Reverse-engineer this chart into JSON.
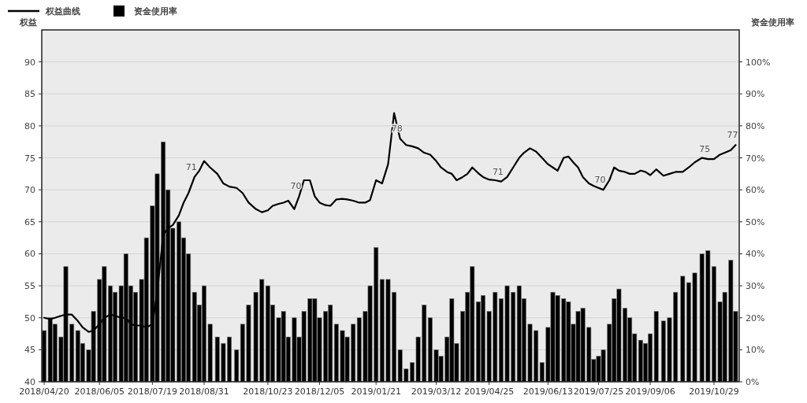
{
  "chart_data": {
    "type": "bar",
    "ylabel": "权益",
    "y2label": "资金使用率",
    "legend": "top left",
    "grid": "y",
    "x": [
      "2018-04-20",
      "2018-04-25",
      "2018-04-29",
      "2018-05-04",
      "2018-05-08",
      "2018-05-13",
      "2018-05-18",
      "2018-05-22",
      "2018-05-27",
      "2018-05-31",
      "2018-06-05",
      "2018-06-09",
      "2018-06-14",
      "2018-06-18",
      "2018-06-23",
      "2018-06-27",
      "2018-07-01",
      "2018-07-05",
      "2018-07-10",
      "2018-07-14",
      "2018-07-19",
      "2018-07-23",
      "2018-07-28",
      "2018-08-01",
      "2018-08-05",
      "2018-08-10",
      "2018-08-14",
      "2018-08-18",
      "2018-08-23",
      "2018-08-27",
      "2018-08-31",
      "2018-09-05",
      "2018-09-11",
      "2018-09-16",
      "2018-09-21",
      "2018-09-27",
      "2018-10-02",
      "2018-10-07",
      "2018-10-13",
      "2018-10-18",
      "2018-10-23",
      "2018-10-27",
      "2018-11-01",
      "2018-11-05",
      "2018-11-09",
      "2018-11-14",
      "2018-11-18",
      "2018-11-22",
      "2018-11-27",
      "2018-12-01",
      "2018-12-05",
      "2018-12-10",
      "2018-12-14",
      "2018-12-19",
      "2018-12-24",
      "2018-12-28",
      "2019-01-02",
      "2019-01-07",
      "2019-01-12",
      "2019-01-16",
      "2019-01-21",
      "2019-01-26",
      "2019-01-31",
      "2019-02-05",
      "2019-02-10",
      "2019-02-15",
      "2019-02-20",
      "2019-02-25",
      "2019-03-02",
      "2019-03-07",
      "2019-03-12",
      "2019-03-16",
      "2019-03-21",
      "2019-03-25",
      "2019-03-29",
      "2019-04-03",
      "2019-04-07",
      "2019-04-11",
      "2019-04-16",
      "2019-04-20",
      "2019-04-25",
      "2019-04-30",
      "2019-05-05",
      "2019-05-10",
      "2019-05-15",
      "2019-05-20",
      "2019-05-24",
      "2019-05-29",
      "2019-06-03",
      "2019-06-08",
      "2019-06-13",
      "2019-06-17",
      "2019-06-21",
      "2019-06-26",
      "2019-06-30",
      "2019-07-04",
      "2019-07-08",
      "2019-07-12",
      "2019-07-17",
      "2019-07-21",
      "2019-07-25",
      "2019-07-29",
      "2019-08-03",
      "2019-08-07",
      "2019-08-11",
      "2019-08-16",
      "2019-08-20",
      "2019-08-24",
      "2019-08-29",
      "2019-09-02",
      "2019-09-06",
      "2019-09-11",
      "2019-09-17",
      "2019-09-22",
      "2019-09-27",
      "2019-10-03",
      "2019-10-08",
      "2019-10-13",
      "2019-10-19",
      "2019-10-24",
      "2019-10-29",
      "2019-11-03",
      "2019-11-07",
      "2019-11-12",
      "2019-11-16"
    ],
    "xlim": [
      "2018-04-18",
      "2019-11-19"
    ],
    "xticks": [
      {
        "value": "2018-04-20",
        "label": "2018/04/20"
      },
      {
        "value": "2018-06-05",
        "label": "2018/06/05"
      },
      {
        "value": "2018-07-19",
        "label": "2018/07/19"
      },
      {
        "value": "2018-08-31",
        "label": "2018/08/31"
      },
      {
        "value": "2018-10-23",
        "label": "2018/10/23"
      },
      {
        "value": "2018-12-05",
        "label": "2018/12/05"
      },
      {
        "value": "2019-01-21",
        "label": "2019/01/21"
      },
      {
        "value": "2019-03-12",
        "label": "2019/03/12"
      },
      {
        "value": "2019-04-25",
        "label": "2019/04/25"
      },
      {
        "value": "2019-06-13",
        "label": "2019/06/13"
      },
      {
        "value": "2019-07-25",
        "label": "2019/07/25"
      },
      {
        "value": "2019-09-06",
        "label": "2019/09/06"
      },
      {
        "value": "2019-10-29",
        "label": "2019/10/29"
      }
    ],
    "ylim": [
      40,
      95
    ],
    "yticks": [
      40,
      45,
      50,
      55,
      60,
      65,
      70,
      75,
      80,
      85,
      90
    ],
    "y2lim": [
      0,
      110
    ],
    "y2ticks": [
      {
        "value": 0,
        "label": "0%"
      },
      {
        "value": 10,
        "label": "10%"
      },
      {
        "value": 20,
        "label": "20%"
      },
      {
        "value": 30,
        "label": "30%"
      },
      {
        "value": 40,
        "label": "40%"
      },
      {
        "value": 50,
        "label": "50%"
      },
      {
        "value": 60,
        "label": "60%"
      },
      {
        "value": 70,
        "label": "70%"
      },
      {
        "value": 80,
        "label": "80%"
      },
      {
        "value": 90,
        "label": "90%"
      },
      {
        "value": 100,
        "label": "100%"
      }
    ],
    "series": [
      {
        "name": "资金使用率",
        "axis": "y2",
        "color": "#000000",
        "values": [
          16,
          20,
          18,
          14,
          36,
          18,
          16,
          12,
          10,
          22,
          32,
          36,
          30,
          28,
          30,
          40,
          30,
          28,
          32,
          45,
          55,
          65,
          75,
          60,
          48,
          50,
          45,
          40,
          28,
          24,
          30,
          18,
          14,
          12,
          14,
          10,
          18,
          24,
          28,
          32,
          30,
          24,
          20,
          22,
          14,
          20,
          14,
          22,
          26,
          26,
          20,
          22,
          24,
          18,
          16,
          14,
          18,
          20,
          22,
          30,
          42,
          32,
          32,
          28,
          10,
          4,
          6,
          14,
          24,
          20,
          10,
          8,
          14,
          26,
          12,
          22,
          28,
          36,
          25,
          27,
          22,
          28,
          26,
          30,
          28,
          30,
          26,
          18,
          16,
          6,
          17,
          28,
          27,
          26,
          25,
          18,
          22,
          23,
          17,
          7,
          8,
          10,
          18,
          26,
          29,
          23,
          20,
          15,
          13,
          12,
          15,
          22,
          19,
          20,
          28,
          33,
          31,
          34,
          40,
          41,
          36,
          25,
          28,
          38,
          22
        ]
      },
      {
        "name": "权益曲线",
        "type": "line",
        "color": "#000000",
        "values": [
          50,
          49.8,
          50,
          50.3,
          50.5,
          50.5,
          49.5,
          48.5,
          47.8,
          48,
          49,
          50,
          50.5,
          50.3,
          50,
          50,
          49,
          48.8,
          48.8,
          48.5,
          49,
          54,
          63,
          64,
          64.5,
          66,
          68,
          69.5,
          72,
          73,
          74.5,
          73.5,
          72.5,
          71,
          70.5,
          70.3,
          69.5,
          68,
          67,
          66.5,
          66.8,
          67.5,
          67.8,
          68,
          68.3,
          67,
          69,
          71.5,
          71.5,
          69,
          68,
          67.6,
          67.5,
          68.5,
          68.6,
          68.5,
          68.3,
          68,
          68,
          68.4,
          71.5,
          71,
          74,
          82,
          78,
          77,
          76.8,
          76.5,
          75.8,
          75.5,
          74.5,
          73.5,
          72.8,
          72.5,
          71.5,
          72,
          72.5,
          73.5,
          72.6,
          72,
          71.6,
          71.5,
          71.3,
          72,
          73.5,
          75,
          75.8,
          76.5,
          76,
          75,
          74,
          73.5,
          73,
          75,
          75.2,
          74.3,
          73.5,
          72,
          71,
          70.6,
          70.3,
          70,
          71.5,
          73.5,
          73,
          72.8,
          72.5,
          72.5,
          73,
          72.8,
          72.3,
          73.2,
          72.2,
          72.5,
          72.8,
          72.8,
          73.5,
          74.3,
          75,
          74.8,
          74.8,
          75.5,
          75.8,
          76.2,
          77
        ]
      }
    ],
    "annotations": [
      {
        "text": "71",
        "x": "2018-08-23",
        "y": 72
      },
      {
        "text": "70",
        "x": "2018-11-18",
        "y": 69
      },
      {
        "text": "78",
        "x": "2019-02-10",
        "y": 78
      },
      {
        "text": "71",
        "x": "2019-05-05",
        "y": 71.3
      },
      {
        "text": "70",
        "x": "2019-07-29",
        "y": 70
      },
      {
        "text": "75",
        "x": "2019-10-24",
        "y": 74.8
      },
      {
        "text": "77",
        "x": "2019-11-16",
        "y": 77
      }
    ]
  }
}
